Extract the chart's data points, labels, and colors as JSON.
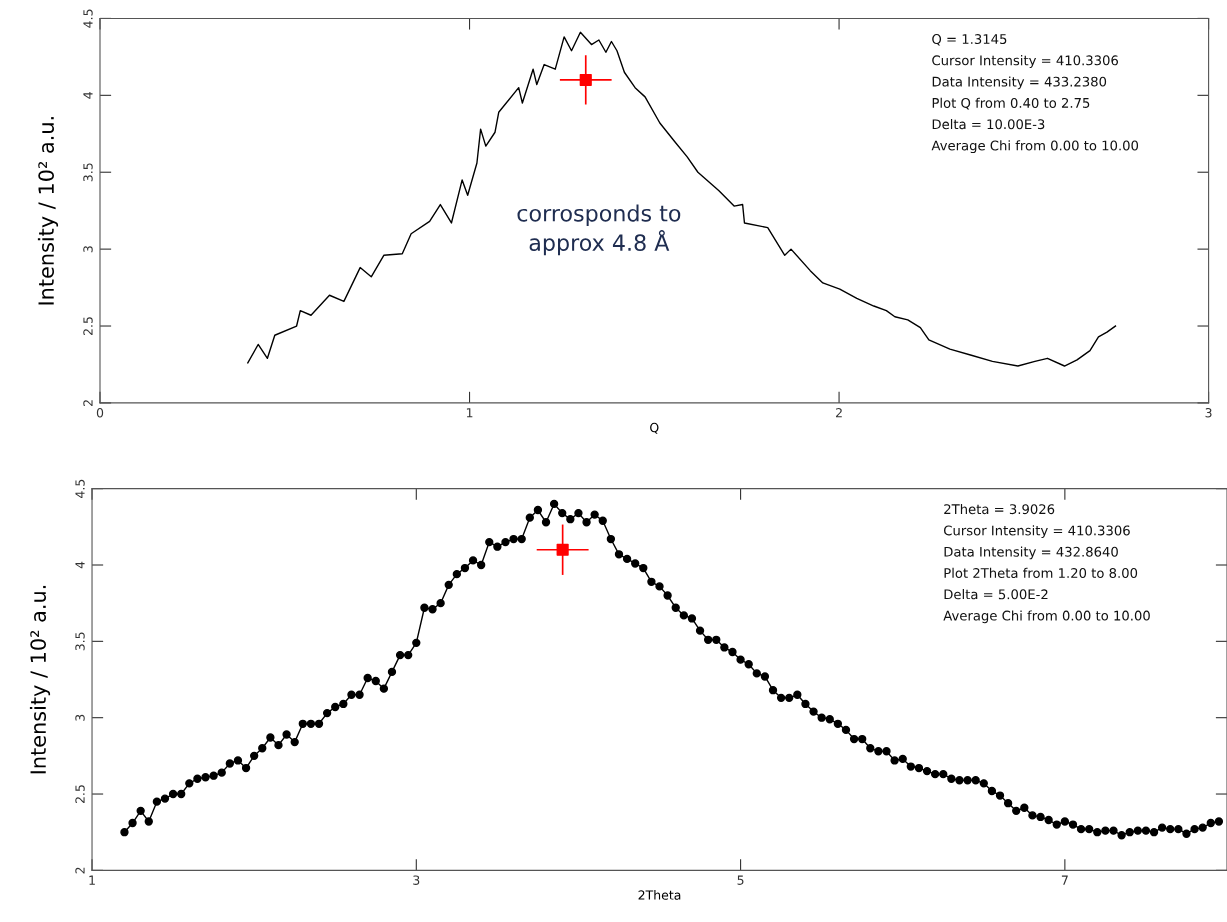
{
  "chart_data": [
    {
      "type": "line",
      "xlabel": "Q",
      "ylabel": "Intensity / 10² a.u.",
      "xlim": [
        0,
        3
      ],
      "xticks": [
        0,
        1,
        2,
        3
      ],
      "ylim": [
        2,
        4.5
      ],
      "yticks": [
        2,
        2.5,
        3,
        3.5,
        4,
        4.5
      ],
      "grid": false,
      "annotations": [
        "Q = 1.3145\nCursor Intensity = 410.3306\nData Intensity = 433.2380\nPlot Q from 0.40 to 2.75\nDelta = 10.00E-3\nAverage Chi from 0.00 to 10.00",
        "corrosponds to\napprox 4.8 Å"
      ],
      "series": [
        {
          "color": "#000000",
          "marker": "none",
          "x": [
            0.4,
            0.428,
            0.453,
            0.473,
            0.532,
            0.542,
            0.571,
            0.621,
            0.66,
            0.704,
            0.734,
            0.768,
            0.818,
            0.842,
            0.892,
            0.921,
            0.951,
            0.98,
            0.995,
            1.02,
            1.03,
            1.044,
            1.069,
            1.079,
            1.133,
            1.143,
            1.172,
            1.182,
            1.202,
            1.232,
            1.256,
            1.276,
            1.3,
            1.33,
            1.35,
            1.369,
            1.384,
            1.399,
            1.419,
            1.448,
            1.475,
            1.515,
            1.555,
            1.589,
            1.618,
            1.675,
            1.716,
            1.739,
            1.744,
            1.807,
            1.853,
            1.87,
            1.922,
            1.956,
            2.002,
            2.048,
            2.094,
            2.128,
            2.151,
            2.186,
            2.22,
            2.243,
            2.3,
            2.358,
            2.415,
            2.484,
            2.53,
            2.564,
            2.61,
            2.644,
            2.679,
            2.702,
            2.725,
            2.748
          ],
          "values": [
            2.26,
            2.38,
            2.29,
            2.44,
            2.5,
            2.6,
            2.57,
            2.7,
            2.66,
            2.88,
            2.82,
            2.96,
            2.97,
            3.1,
            3.18,
            3.29,
            3.17,
            3.45,
            3.35,
            3.56,
            3.78,
            3.67,
            3.76,
            3.89,
            4.05,
            3.95,
            4.17,
            4.07,
            4.2,
            4.17,
            4.38,
            4.29,
            4.41,
            4.33,
            4.36,
            4.28,
            4.35,
            4.29,
            4.15,
            4.05,
            3.99,
            3.82,
            3.7,
            3.6,
            3.5,
            3.38,
            3.28,
            3.29,
            3.17,
            3.14,
            2.96,
            3.0,
            2.86,
            2.78,
            2.74,
            2.68,
            2.63,
            2.6,
            2.56,
            2.54,
            2.49,
            2.41,
            2.35,
            2.31,
            2.27,
            2.24,
            2.27,
            2.29,
            2.24,
            2.28,
            2.34,
            2.43,
            2.46,
            2.5
          ]
        },
        {
          "type": "scatter",
          "color": "#ff0000",
          "marker": "square",
          "x": [
            1.3145
          ],
          "values": [
            4.1
          ],
          "errors": [
            0.16
          ],
          "xerrors": [
            0.07
          ]
        }
      ]
    },
    {
      "type": "line",
      "xlabel": "2Theta",
      "ylabel": "Intensity / 10² a.u.",
      "xlim": [
        1,
        8
      ],
      "xticks": [
        1,
        3,
        5,
        7
      ],
      "ylim": [
        2,
        4.5
      ],
      "yticks": [
        2,
        2.5,
        3,
        3.5,
        4,
        4.5
      ],
      "grid": false,
      "annotations": [
        "2Theta = 3.9026\nCursor Intensity = 410.3306\nData Intensity = 432.8640\nPlot 2Theta from 1.20 to 8.00\nDelta = 5.00E-2\nAverage Chi from 0.00 to 10.00"
      ],
      "series": [
        {
          "color": "#000000",
          "marker": "circle",
          "x": [
            1.2,
            1.25,
            1.3,
            1.35,
            1.4,
            1.45,
            1.5,
            1.55,
            1.6,
            1.65,
            1.7,
            1.75,
            1.8,
            1.85,
            1.9,
            1.95,
            2.0,
            2.05,
            2.1,
            2.15,
            2.2,
            2.25,
            2.3,
            2.35,
            2.4,
            2.45,
            2.5,
            2.55,
            2.6,
            2.65,
            2.7,
            2.75,
            2.8,
            2.85,
            2.9,
            2.95,
            3.0,
            3.05,
            3.1,
            3.15,
            3.2,
            3.25,
            3.3,
            3.35,
            3.4,
            3.45,
            3.5,
            3.55,
            3.6,
            3.65,
            3.7,
            3.75,
            3.8,
            3.85,
            3.9,
            3.95,
            4.0,
            4.05,
            4.1,
            4.15,
            4.2,
            4.25,
            4.3,
            4.35,
            4.4,
            4.45,
            4.5,
            4.55,
            4.6,
            4.65,
            4.7,
            4.75,
            4.8,
            4.85,
            4.9,
            4.95,
            5.0,
            5.05,
            5.1,
            5.15,
            5.2,
            5.25,
            5.3,
            5.35,
            5.4,
            5.45,
            5.5,
            5.55,
            5.6,
            5.65,
            5.7,
            5.75,
            5.8,
            5.85,
            5.9,
            5.95,
            6.0,
            6.05,
            6.1,
            6.15,
            6.2,
            6.25,
            6.3,
            6.35,
            6.4,
            6.45,
            6.5,
            6.55,
            6.6,
            6.65,
            6.7,
            6.75,
            6.8,
            6.85,
            6.9,
            6.95,
            7.0,
            7.05,
            7.1,
            7.15,
            7.2,
            7.25,
            7.3,
            7.35,
            7.4,
            7.45,
            7.5,
            7.55,
            7.6,
            7.65,
            7.7,
            7.75,
            7.8,
            7.85,
            7.9,
            7.95
          ],
          "values": [
            2.25,
            2.31,
            2.39,
            2.32,
            2.45,
            2.47,
            2.5,
            2.5,
            2.57,
            2.6,
            2.61,
            2.62,
            2.64,
            2.7,
            2.72,
            2.67,
            2.75,
            2.8,
            2.87,
            2.82,
            2.89,
            2.84,
            2.96,
            2.96,
            2.96,
            3.03,
            3.07,
            3.09,
            3.15,
            3.15,
            3.26,
            3.24,
            3.19,
            3.3,
            3.41,
            3.41,
            3.49,
            3.72,
            3.71,
            3.75,
            3.87,
            3.94,
            3.98,
            4.03,
            4.0,
            4.15,
            4.12,
            4.15,
            4.17,
            4.17,
            4.31,
            4.36,
            4.28,
            4.4,
            4.34,
            4.3,
            4.34,
            4.28,
            4.33,
            4.29,
            4.17,
            4.07,
            4.04,
            4.01,
            3.98,
            3.89,
            3.86,
            3.8,
            3.72,
            3.67,
            3.65,
            3.57,
            3.51,
            3.51,
            3.46,
            3.43,
            3.38,
            3.35,
            3.29,
            3.27,
            3.18,
            3.13,
            3.13,
            3.15,
            3.09,
            3.04,
            3.0,
            2.99,
            2.96,
            2.92,
            2.86,
            2.86,
            2.8,
            2.78,
            2.78,
            2.72,
            2.73,
            2.68,
            2.67,
            2.65,
            2.63,
            2.63,
            2.6,
            2.59,
            2.59,
            2.59,
            2.57,
            2.52,
            2.49,
            2.44,
            2.39,
            2.41,
            2.36,
            2.35,
            2.33,
            2.3,
            2.32,
            2.3,
            2.27,
            2.27,
            2.25,
            2.26,
            2.26,
            2.23,
            2.25,
            2.26,
            2.26,
            2.25,
            2.28,
            2.27,
            2.27,
            2.24,
            2.27,
            2.28,
            2.31,
            2.32
          ]
        },
        {
          "type": "scatter",
          "color": "#ff0000",
          "marker": "square",
          "x": [
            3.9026
          ],
          "values": [
            4.1
          ],
          "errors": [
            0.165
          ],
          "xerrors": [
            0.16
          ]
        }
      ]
    }
  ]
}
